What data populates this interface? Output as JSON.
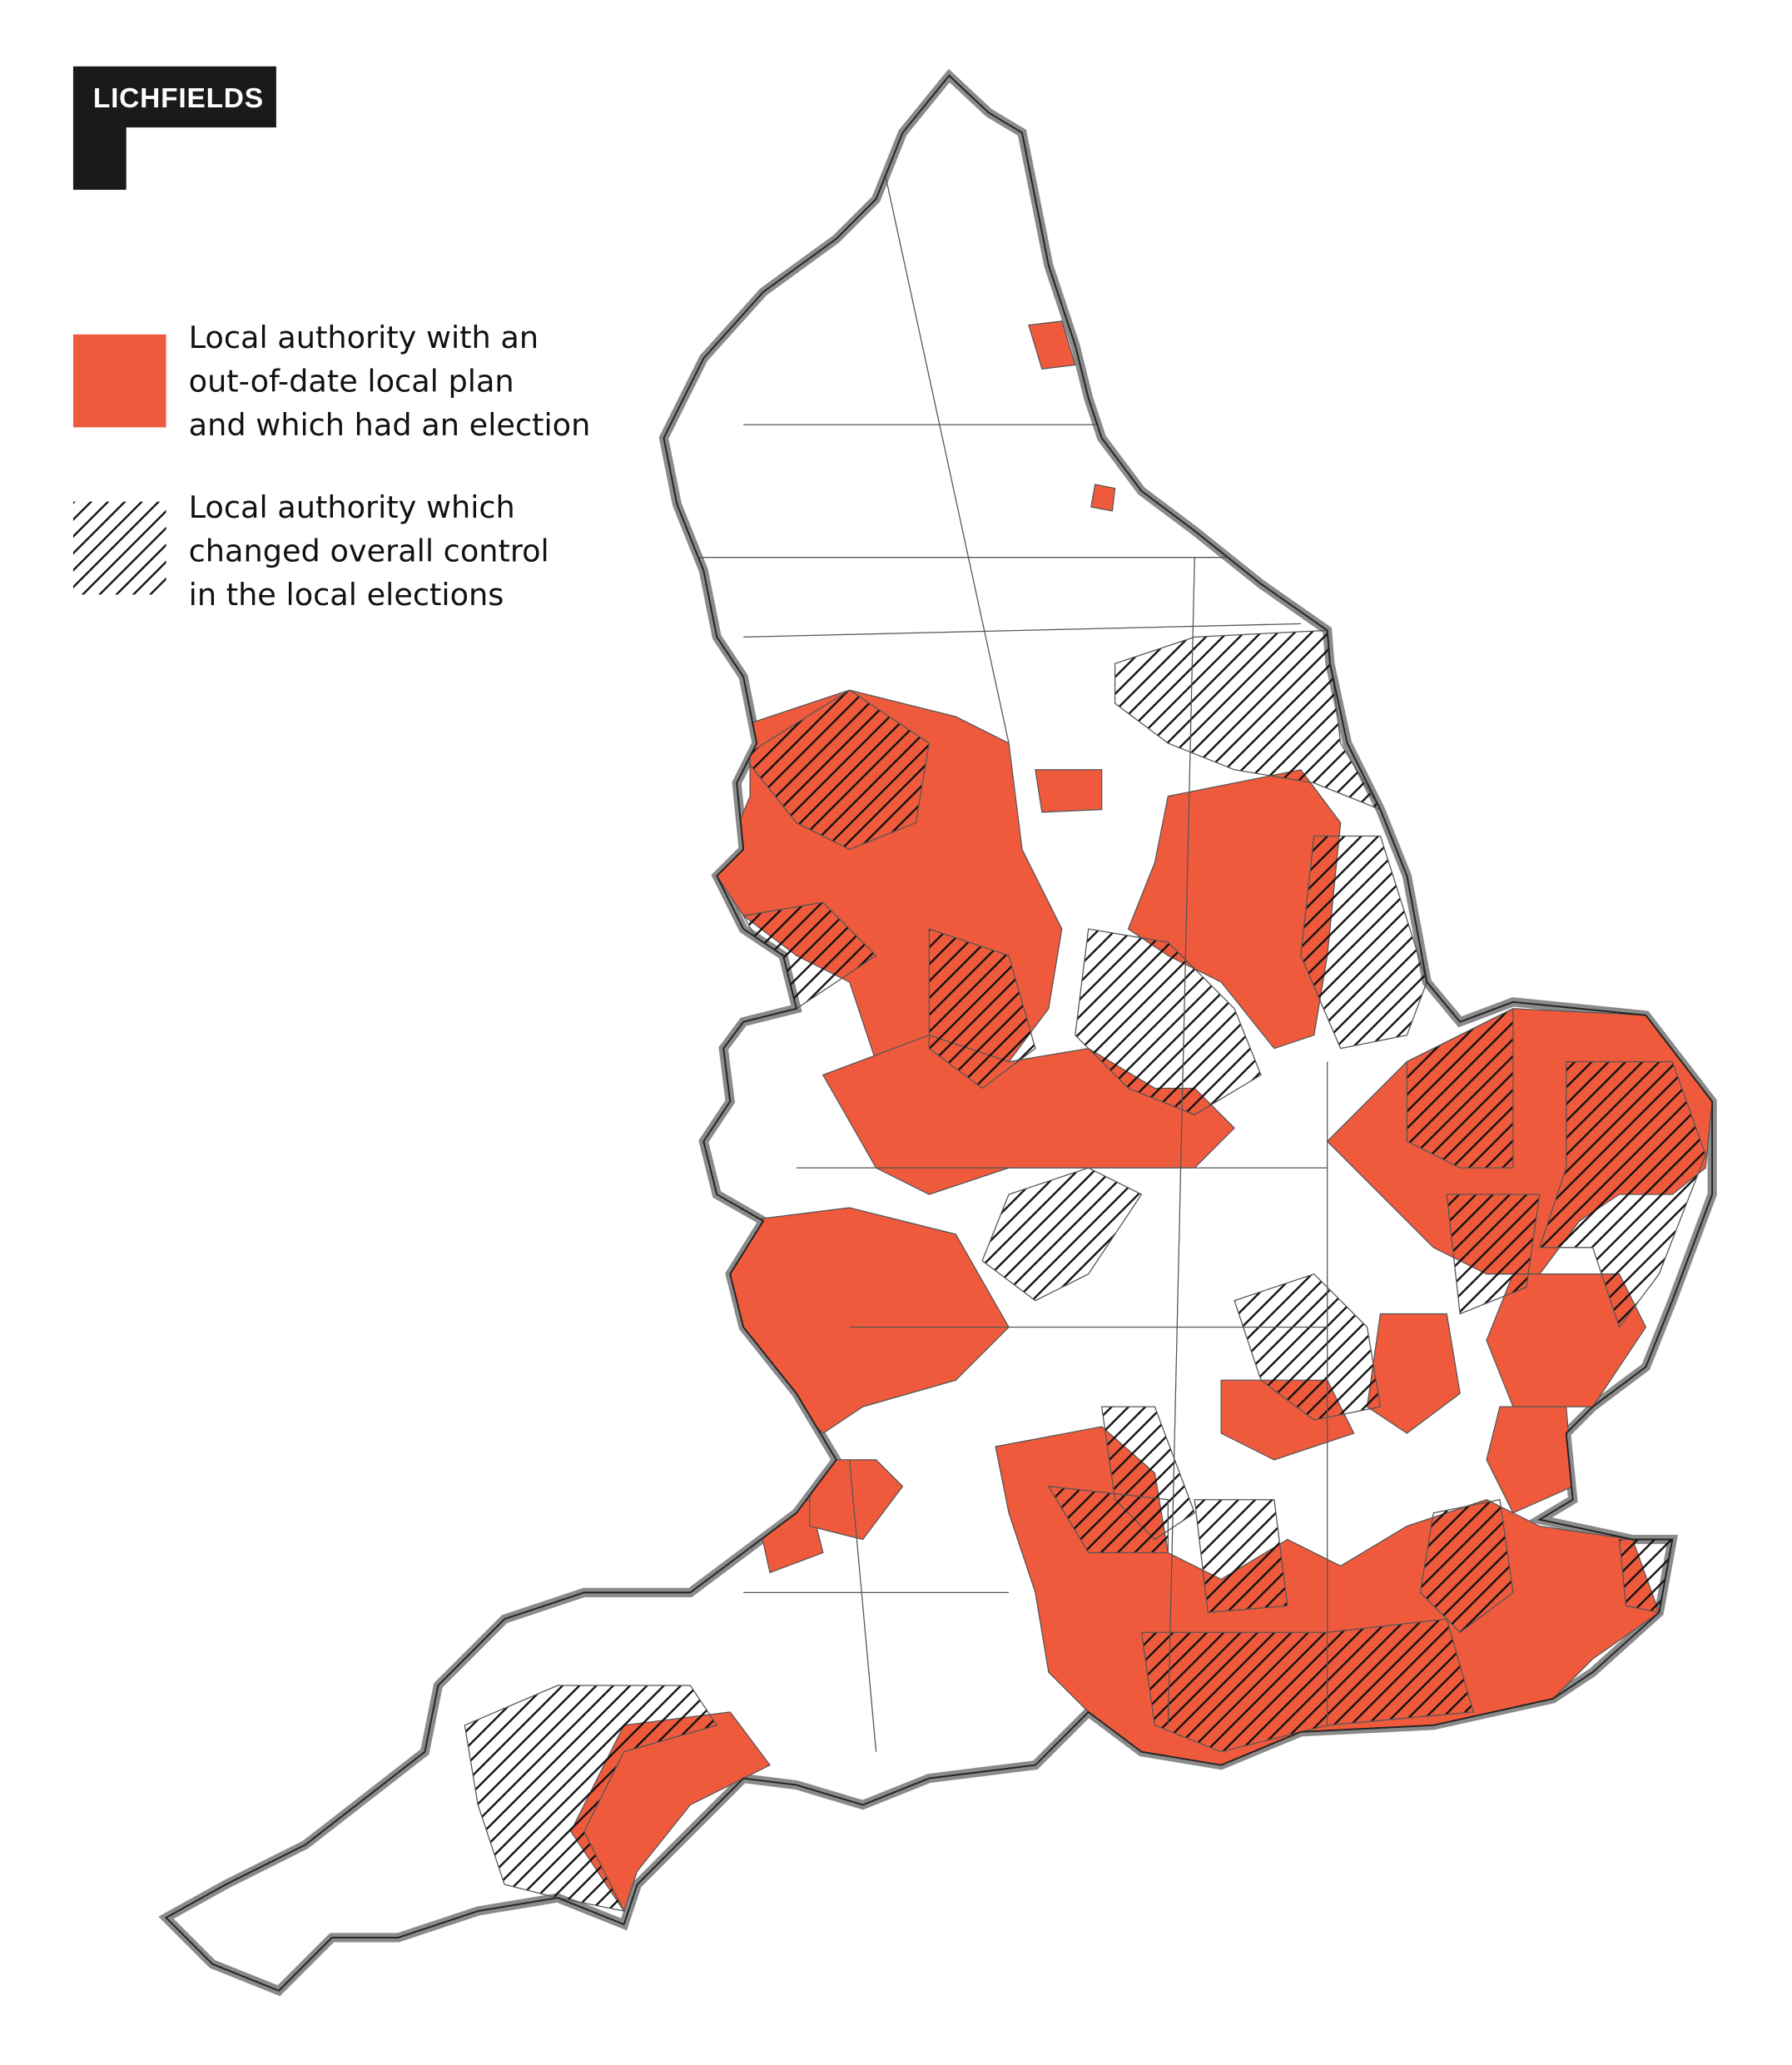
{
  "logo": "LICHFIELDS",
  "legend": [
    {
      "lines": [
        "Local authority with an",
        "out-of-date local plan",
        "and which had an election"
      ],
      "color": "#f05a3c"
    },
    {
      "lines": [
        "Local authority which",
        "changed overall control",
        "in the local elections"
      ]
    }
  ]
}
